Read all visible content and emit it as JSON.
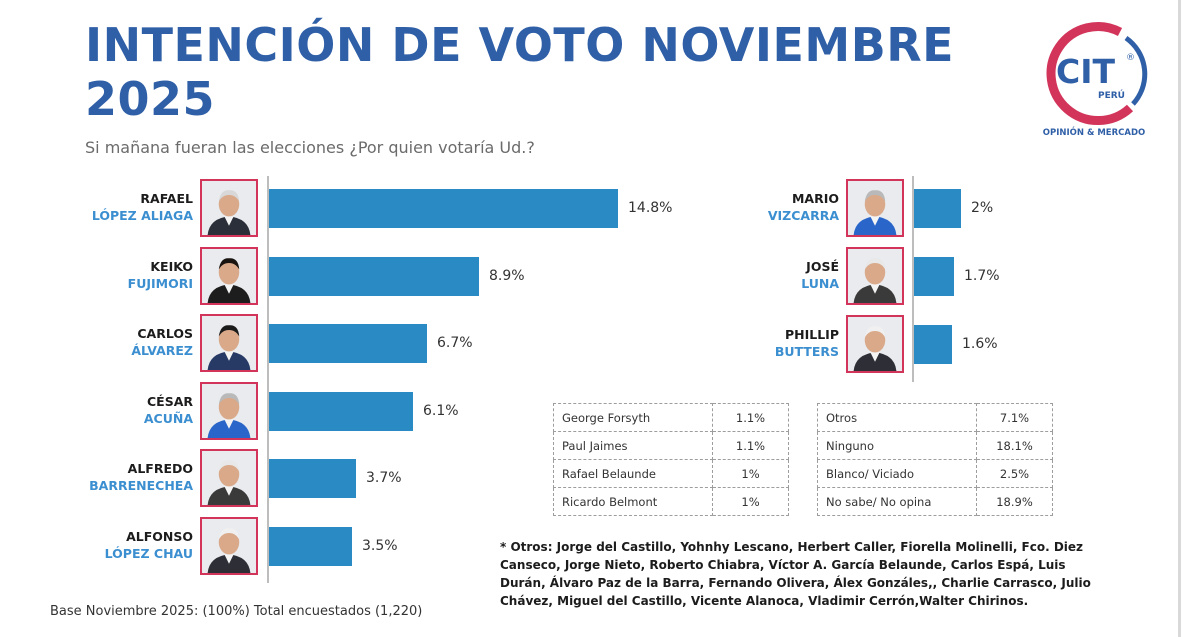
{
  "header": {
    "title": "INTENCIÓN DE VOTO NOVIEMBRE 2025",
    "subtitle": "Si mañana fueran las elecciones ¿Por quien votaría Ud.?"
  },
  "logo": {
    "text": "CIT",
    "registered": "®",
    "country": "PERÚ",
    "tagline": "OPINIÓN & MERCADO"
  },
  "colors": {
    "bar": "#2a8ac4",
    "title": "#2f5fa7",
    "photo_border": "#d2345a",
    "last_name": "#3b8fd0"
  },
  "chart_data": {
    "type": "bar",
    "orientation": "horizontal",
    "title": "INTENCIÓN DE VOTO NOVIEMBRE 2025",
    "unit": "%",
    "xlim": [
      0,
      16
    ],
    "left_panel": [
      {
        "first": "RAFAEL",
        "last": "LÓPEZ ALIAGA",
        "value": 14.8,
        "label": "14.8%"
      },
      {
        "first": "KEIKO",
        "last": "FUJIMORI",
        "value": 8.9,
        "label": "8.9%"
      },
      {
        "first": "CARLOS",
        "last": "ÁLVAREZ",
        "value": 6.7,
        "label": "6.7%"
      },
      {
        "first": "CÉSAR",
        "last": "ACUÑA",
        "value": 6.1,
        "label": "6.1%"
      },
      {
        "first": "ALFREDO",
        "last": "BARRENECHEA",
        "value": 3.7,
        "label": "3.7%"
      },
      {
        "first": "ALFONSO",
        "last": "LÓPEZ CHAU",
        "value": 3.5,
        "label": "3.5%"
      }
    ],
    "right_panel": [
      {
        "first": "MARIO",
        "last": "VIZCARRA",
        "value": 2,
        "label": "2%"
      },
      {
        "first": "JOSÉ",
        "last": "LUNA",
        "value": 1.7,
        "label": "1.7%"
      },
      {
        "first": "PHILLIP",
        "last": "BUTTERS",
        "value": 1.6,
        "label": "1.6%"
      }
    ]
  },
  "table_left": [
    {
      "name": "George Forsyth",
      "value": "1.1%"
    },
    {
      "name": "Paul Jaimes",
      "value": "1.1%"
    },
    {
      "name": "Rafael Belaunde",
      "value": "1%"
    },
    {
      "name": "Ricardo Belmont",
      "value": "1%"
    }
  ],
  "table_right": [
    {
      "name": "Otros",
      "value": "7.1%"
    },
    {
      "name": "Ninguno",
      "value": "18.1%"
    },
    {
      "name": "Blanco/ Viciado",
      "value": "2.5%"
    },
    {
      "name": "No sabe/ No opina",
      "value": "18.9%"
    }
  ],
  "footnote": "* Otros: Jorge del Castillo, Yohnhy Lescano, Herbert Caller, Fiorella Molinelli, Fco. Diez Canseco, Jorge Nieto, Roberto Chiabra, Víctor A. García Belaunde, Carlos Espá, Luis Durán, Álvaro Paz de la Barra, Fernando Olivera, Álex Gonzáles,, Charlie Carrasco, Julio Chávez, Miguel del Castillo, Vicente Alanoca, Vladimir Cerrón,Walter Chirinos.",
  "base": "Base Noviembre 2025: (100%) Total encuestados (1,220)"
}
